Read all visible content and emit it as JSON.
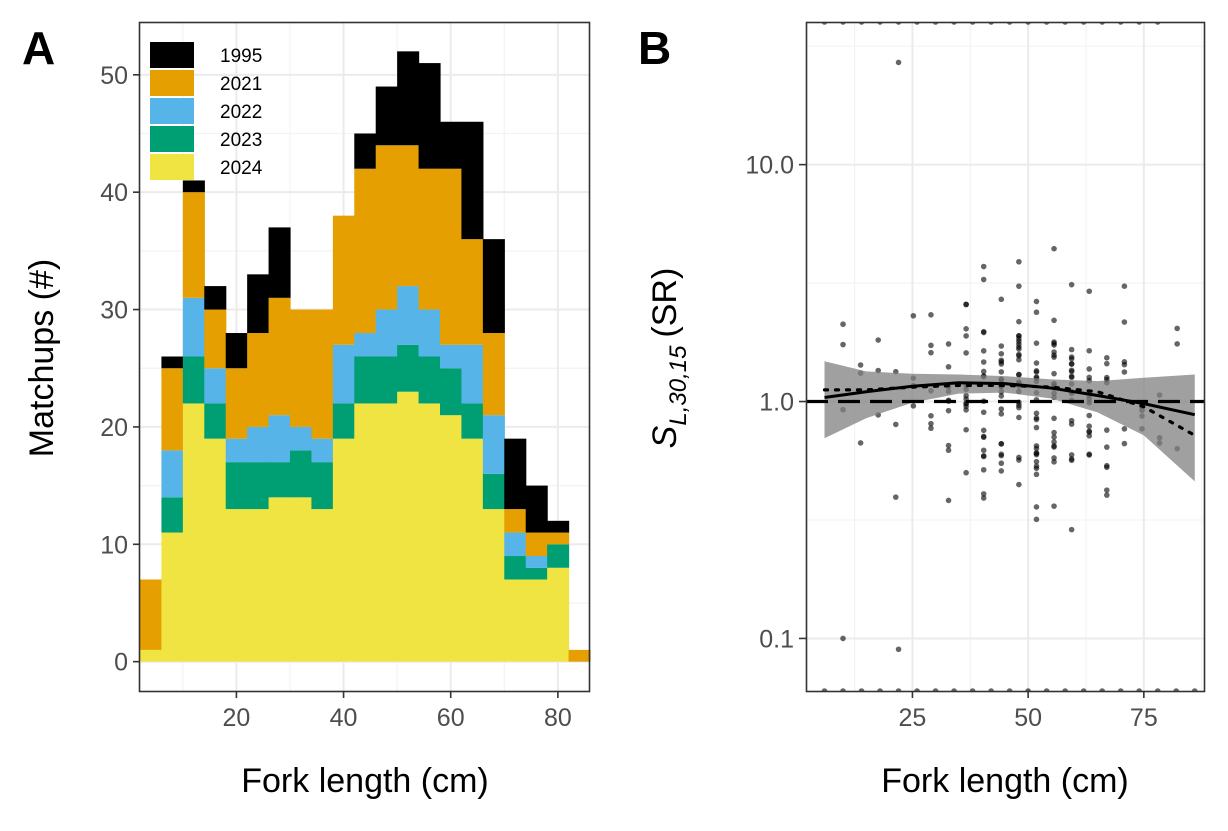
{
  "panels": {
    "a_tag": "A",
    "b_tag": "B"
  },
  "chart_data": [
    {
      "type": "bar",
      "stacked": true,
      "xlabel": "Fork length (cm)",
      "ylabel": "Matchups (#)",
      "xlim": [
        2,
        86
      ],
      "ylim": [
        -2.5,
        54.5
      ],
      "xticks": [
        20,
        40,
        60,
        80
      ],
      "yticks": [
        0,
        10,
        20,
        30,
        40,
        50
      ],
      "grid": true,
      "legend_position": "top-left",
      "bin_width": 4,
      "categories": [
        4,
        8,
        12,
        16,
        20,
        24,
        28,
        32,
        36,
        40,
        44,
        48,
        52,
        56,
        60,
        64,
        68,
        72,
        76,
        80,
        84
      ],
      "series": [
        {
          "name": "2024",
          "color": "#F0E442",
          "values": [
            1,
            11,
            22,
            19,
            13,
            13,
            14,
            14,
            13,
            19,
            22,
            22,
            23,
            22,
            21,
            19,
            13,
            7,
            7,
            8,
            0
          ]
        },
        {
          "name": "2023",
          "color": "#009E73",
          "values": [
            0,
            3,
            4,
            3,
            4,
            4,
            3,
            4,
            4,
            3,
            4,
            4,
            4,
            4,
            4,
            3,
            3,
            2,
            1,
            2,
            0
          ]
        },
        {
          "name": "2022",
          "color": "#56B4E9",
          "values": [
            0,
            4,
            5,
            3,
            2,
            3,
            4,
            2,
            2,
            5,
            2,
            4,
            5,
            4,
            2,
            5,
            5,
            2,
            1,
            0,
            0
          ]
        },
        {
          "name": "2021",
          "color": "#E69F00",
          "values": [
            6,
            7,
            9,
            5,
            6,
            8,
            10,
            10,
            11,
            11,
            14,
            14,
            12,
            12,
            15,
            9,
            7,
            2,
            2,
            1,
            1
          ]
        },
        {
          "name": "1995",
          "color": "#000000",
          "values": [
            0,
            1,
            1,
            2,
            3,
            5,
            6,
            0,
            0,
            0,
            3,
            5,
            8,
            9,
            4,
            10,
            8,
            6,
            4,
            1,
            0
          ]
        }
      ],
      "legend_order": [
        "1995",
        "2021",
        "2022",
        "2023",
        "2024"
      ]
    },
    {
      "type": "scatter",
      "xlabel": "Fork length (cm)",
      "ylabel_main": "S",
      "ylabel_subscript": "L,30,15",
      "ylabel_suffix": "(SR)",
      "yscale": "log10",
      "xlim": [
        2,
        88
      ],
      "ylim": [
        0.06,
        40
      ],
      "xticks": [
        25,
        50,
        75
      ],
      "yticks": [
        0.1,
        1.0,
        10.0
      ],
      "ytick_labels": [
        "0.1",
        "1.0",
        "10.0"
      ],
      "grid": true,
      "reference_line": {
        "y": 1.0,
        "style": "dashed"
      },
      "fit_line": {
        "x": [
          6,
          15,
          25,
          35,
          45,
          55,
          65,
          75,
          86
        ],
        "y": [
          1.04,
          1.1,
          1.16,
          1.2,
          1.19,
          1.14,
          1.06,
          0.98,
          0.88
        ]
      },
      "confidence_band": {
        "x": [
          6,
          15,
          25,
          35,
          45,
          55,
          65,
          75,
          86
        ],
        "lower": [
          0.7,
          0.85,
          0.99,
          1.08,
          1.09,
          1.03,
          0.9,
          0.72,
          0.46
        ],
        "upper": [
          1.48,
          1.34,
          1.31,
          1.3,
          1.28,
          1.24,
          1.22,
          1.26,
          1.3
        ]
      },
      "dotted_line": {
        "x": [
          6,
          15,
          25,
          35,
          45,
          55,
          65,
          75,
          86
        ],
        "y": [
          1.12,
          1.12,
          1.15,
          1.17,
          1.17,
          1.15,
          1.1,
          0.95,
          0.72
        ]
      },
      "point_color": "#000000"
    }
  ]
}
